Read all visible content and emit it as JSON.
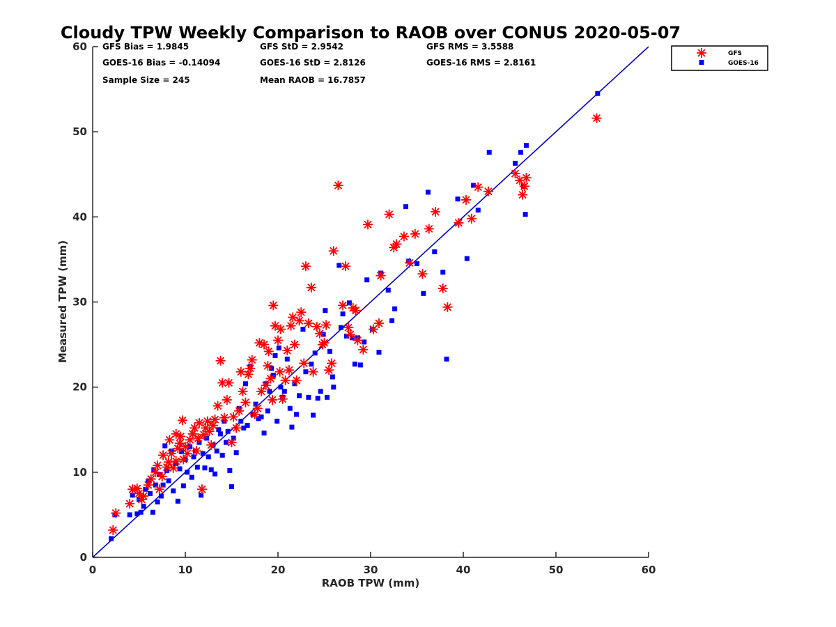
{
  "chart_data": {
    "type": "scatter",
    "title": "Cloudy TPW Weekly Comparison to RAOB over CONUS 2020-05-07",
    "xlabel": "RAOB TPW (mm)",
    "ylabel": "Measured TPW (mm)",
    "xlim": [
      0,
      60
    ],
    "ylim": [
      0,
      60
    ],
    "xticks": [
      "0",
      "10",
      "20",
      "30",
      "40",
      "50",
      "60"
    ],
    "yticks": [
      "0",
      "10",
      "20",
      "30",
      "40",
      "50",
      "60"
    ],
    "grid": false,
    "legend_position": "top-right",
    "reference_line": {
      "x": [
        0,
        60
      ],
      "y": [
        0,
        60
      ],
      "color": "#0000cc"
    },
    "stats": [
      "GFS Bias = 1.9845",
      "GFS StD = 2.9542",
      "GFS RMS = 3.5588",
      "GOES-16 Bias = -0.14094",
      "GOES-16 StD = 2.8126",
      "GOES-16 RMS = 2.8161",
      "Sample Size = 245",
      "Mean RAOB = 16.7857"
    ],
    "series": [
      {
        "name": "GFS",
        "marker": "asterisk",
        "color": "#ff0000",
        "points": [
          [
            2.2,
            3.2
          ],
          [
            2.5,
            5.2
          ],
          [
            4.0,
            6.3
          ],
          [
            4.3,
            8.0
          ],
          [
            4.8,
            8.1
          ],
          [
            5.0,
            7.5
          ],
          [
            5.3,
            6.8
          ],
          [
            5.5,
            7.2
          ],
          [
            6.0,
            8.5
          ],
          [
            6.3,
            9.2
          ],
          [
            6.8,
            10.0
          ],
          [
            7.0,
            10.8
          ],
          [
            7.2,
            8.0
          ],
          [
            7.5,
            9.5
          ],
          [
            7.6,
            12.0
          ],
          [
            8.0,
            10.6
          ],
          [
            8.2,
            11.2
          ],
          [
            8.3,
            13.8
          ],
          [
            8.5,
            12.2
          ],
          [
            8.7,
            10.5
          ],
          [
            9.0,
            11.3
          ],
          [
            9.0,
            14.5
          ],
          [
            9.2,
            12.8
          ],
          [
            9.4,
            13.4
          ],
          [
            9.5,
            14.2
          ],
          [
            9.7,
            16.1
          ],
          [
            9.8,
            11.5
          ],
          [
            10.0,
            13.0
          ],
          [
            10.2,
            12.2
          ],
          [
            10.5,
            13.8
          ],
          [
            10.8,
            14.5
          ],
          [
            11.0,
            15.2
          ],
          [
            11.2,
            12.5
          ],
          [
            11.4,
            14.0
          ],
          [
            11.5,
            15.8
          ],
          [
            11.8,
            8.0
          ],
          [
            12.0,
            14.4
          ],
          [
            12.2,
            15.2
          ],
          [
            12.4,
            16.0
          ],
          [
            12.6,
            14.8
          ],
          [
            12.8,
            13.2
          ],
          [
            13.0,
            15.5
          ],
          [
            13.2,
            16.2
          ],
          [
            13.5,
            17.8
          ],
          [
            13.8,
            23.1
          ],
          [
            14.0,
            20.5
          ],
          [
            14.2,
            16.4
          ],
          [
            14.5,
            18.5
          ],
          [
            14.7,
            20.5
          ],
          [
            15.0,
            13.5
          ],
          [
            15.2,
            16.5
          ],
          [
            15.5,
            15.2
          ],
          [
            15.8,
            17.2
          ],
          [
            16.0,
            21.8
          ],
          [
            16.2,
            19.5
          ],
          [
            16.5,
            18.2
          ],
          [
            16.8,
            21.5
          ],
          [
            17.0,
            22.2
          ],
          [
            17.2,
            23.2
          ],
          [
            17.5,
            16.8
          ],
          [
            17.8,
            17.5
          ],
          [
            18.0,
            25.2
          ],
          [
            18.2,
            19.5
          ],
          [
            18.5,
            25.0
          ],
          [
            18.7,
            20.2
          ],
          [
            18.9,
            22.5
          ],
          [
            19.0,
            24.2
          ],
          [
            19.2,
            21.0
          ],
          [
            19.4,
            18.5
          ],
          [
            19.5,
            29.6
          ],
          [
            19.7,
            27.2
          ],
          [
            20.0,
            25.5
          ],
          [
            20.2,
            21.8
          ],
          [
            20.3,
            26.8
          ],
          [
            20.5,
            18.6
          ],
          [
            20.8,
            20.8
          ],
          [
            21.0,
            24.3
          ],
          [
            21.2,
            22.0
          ],
          [
            21.4,
            27.2
          ],
          [
            21.6,
            28.2
          ],
          [
            21.8,
            25.0
          ],
          [
            22.0,
            20.8
          ],
          [
            22.3,
            27.8
          ],
          [
            22.5,
            28.8
          ],
          [
            22.8,
            22.8
          ],
          [
            23.0,
            34.2
          ],
          [
            23.3,
            27.5
          ],
          [
            23.6,
            31.7
          ],
          [
            23.8,
            21.8
          ],
          [
            24.2,
            27.1
          ],
          [
            24.5,
            26.3
          ],
          [
            24.8,
            25.0
          ],
          [
            25.0,
            25.2
          ],
          [
            25.2,
            27.3
          ],
          [
            25.5,
            22.0
          ],
          [
            25.8,
            22.8
          ],
          [
            26.0,
            36.0
          ],
          [
            26.5,
            43.7
          ],
          [
            27.0,
            29.6
          ],
          [
            27.3,
            34.2
          ],
          [
            27.6,
            27.0
          ],
          [
            27.8,
            26.2
          ],
          [
            28.1,
            29.3
          ],
          [
            28.4,
            29.0
          ],
          [
            28.6,
            25.5
          ],
          [
            29.2,
            24.4
          ],
          [
            29.7,
            39.1
          ],
          [
            30.3,
            26.8
          ],
          [
            30.9,
            27.5
          ],
          [
            31.1,
            33.1
          ],
          [
            32.0,
            40.3
          ],
          [
            32.5,
            36.4
          ],
          [
            32.8,
            36.8
          ],
          [
            33.6,
            37.7
          ],
          [
            34.2,
            34.6
          ],
          [
            34.8,
            38.0
          ],
          [
            35.6,
            33.3
          ],
          [
            36.3,
            38.6
          ],
          [
            37.0,
            40.6
          ],
          [
            37.8,
            31.6
          ],
          [
            38.3,
            29.4
          ],
          [
            39.5,
            39.3
          ],
          [
            40.3,
            42.0
          ],
          [
            40.9,
            39.8
          ],
          [
            41.6,
            43.5
          ],
          [
            42.7,
            43.0
          ],
          [
            45.6,
            45.1
          ],
          [
            46.1,
            44.3
          ],
          [
            46.4,
            42.6
          ],
          [
            46.6,
            43.6
          ],
          [
            46.8,
            44.6
          ],
          [
            54.4,
            51.6
          ]
        ]
      },
      {
        "name": "GOES-16",
        "marker": "square",
        "color": "#0000ff",
        "points": [
          [
            2.0,
            2.2
          ],
          [
            2.4,
            5.0
          ],
          [
            4.0,
            5.0
          ],
          [
            4.3,
            7.3
          ],
          [
            4.8,
            5.1
          ],
          [
            5.0,
            6.8
          ],
          [
            5.2,
            5.3
          ],
          [
            5.5,
            6.0
          ],
          [
            5.7,
            8.0
          ],
          [
            6.0,
            9.0
          ],
          [
            6.2,
            7.5
          ],
          [
            6.5,
            5.3
          ],
          [
            6.6,
            10.3
          ],
          [
            6.8,
            8.5
          ],
          [
            7.0,
            6.5
          ],
          [
            7.2,
            9.7
          ],
          [
            7.4,
            7.2
          ],
          [
            7.6,
            8.5
          ],
          [
            7.8,
            13.1
          ],
          [
            8.0,
            10.2
          ],
          [
            8.2,
            9.0
          ],
          [
            8.5,
            12.5
          ],
          [
            8.7,
            7.8
          ],
          [
            9.0,
            11.0
          ],
          [
            9.2,
            6.6
          ],
          [
            9.4,
            10.4
          ],
          [
            9.6,
            12.4
          ],
          [
            9.8,
            8.4
          ],
          [
            10.0,
            11.5
          ],
          [
            10.2,
            10.0
          ],
          [
            10.5,
            13.0
          ],
          [
            10.7,
            9.4
          ],
          [
            10.9,
            11.8
          ],
          [
            11.1,
            12.5
          ],
          [
            11.3,
            10.6
          ],
          [
            11.5,
            13.5
          ],
          [
            11.7,
            7.3
          ],
          [
            11.9,
            12.2
          ],
          [
            12.1,
            10.5
          ],
          [
            12.3,
            14.0
          ],
          [
            12.5,
            11.8
          ],
          [
            12.8,
            10.3
          ],
          [
            13.0,
            13.2
          ],
          [
            13.2,
            9.8
          ],
          [
            13.4,
            12.5
          ],
          [
            13.6,
            15.0
          ],
          [
            13.8,
            14.5
          ],
          [
            14.0,
            12.0
          ],
          [
            14.2,
            16.0
          ],
          [
            14.4,
            13.5
          ],
          [
            14.6,
            14.8
          ],
          [
            14.8,
            10.2
          ],
          [
            15.0,
            8.3
          ],
          [
            15.2,
            14.0
          ],
          [
            15.5,
            12.3
          ],
          [
            15.8,
            17.5
          ],
          [
            16.0,
            16.0
          ],
          [
            16.3,
            15.2
          ],
          [
            16.5,
            20.4
          ],
          [
            16.7,
            15.5
          ],
          [
            17.0,
            22.4
          ],
          [
            17.3,
            16.8
          ],
          [
            17.6,
            18.0
          ],
          [
            17.9,
            16.3
          ],
          [
            18.2,
            16.5
          ],
          [
            18.5,
            14.6
          ],
          [
            18.7,
            20.4
          ],
          [
            18.9,
            17.2
          ],
          [
            19.1,
            19.5
          ],
          [
            19.3,
            22.2
          ],
          [
            19.5,
            21.4
          ],
          [
            19.7,
            23.7
          ],
          [
            19.9,
            16.0
          ],
          [
            20.1,
            24.6
          ],
          [
            20.3,
            20.0
          ],
          [
            20.5,
            18.8
          ],
          [
            20.7,
            19.5
          ],
          [
            21.0,
            23.3
          ],
          [
            21.3,
            17.5
          ],
          [
            21.5,
            15.3
          ],
          [
            21.8,
            20.4
          ],
          [
            22.0,
            16.8
          ],
          [
            22.3,
            19.0
          ],
          [
            22.7,
            26.8
          ],
          [
            23.0,
            21.8
          ],
          [
            23.3,
            18.8
          ],
          [
            23.6,
            22.7
          ],
          [
            23.8,
            16.7
          ],
          [
            24.0,
            24.0
          ],
          [
            24.3,
            18.7
          ],
          [
            24.6,
            19.5
          ],
          [
            24.9,
            26.2
          ],
          [
            25.1,
            29.0
          ],
          [
            25.3,
            18.8
          ],
          [
            25.6,
            24.2
          ],
          [
            25.9,
            21.2
          ],
          [
            26.0,
            20.0
          ],
          [
            26.6,
            34.3
          ],
          [
            26.8,
            27.0
          ],
          [
            27.0,
            28.6
          ],
          [
            27.4,
            26.0
          ],
          [
            27.7,
            29.9
          ],
          [
            28.0,
            25.8
          ],
          [
            28.3,
            22.7
          ],
          [
            28.6,
            25.8
          ],
          [
            28.9,
            22.6
          ],
          [
            29.3,
            25.3
          ],
          [
            29.6,
            32.6
          ],
          [
            30.2,
            26.8
          ],
          [
            30.9,
            24.1
          ],
          [
            31.1,
            33.4
          ],
          [
            31.9,
            31.4
          ],
          [
            32.3,
            27.8
          ],
          [
            32.6,
            29.2
          ],
          [
            33.8,
            41.2
          ],
          [
            34.1,
            34.8
          ],
          [
            35.0,
            34.5
          ],
          [
            35.7,
            31.0
          ],
          [
            36.2,
            42.9
          ],
          [
            36.9,
            35.9
          ],
          [
            37.8,
            33.5
          ],
          [
            38.2,
            23.3
          ],
          [
            39.4,
            42.1
          ],
          [
            40.4,
            35.1
          ],
          [
            41.1,
            43.7
          ],
          [
            41.6,
            40.8
          ],
          [
            42.8,
            47.6
          ],
          [
            45.6,
            46.3
          ],
          [
            46.2,
            47.6
          ],
          [
            46.5,
            43.6
          ],
          [
            46.7,
            40.3
          ],
          [
            46.8,
            48.4
          ],
          [
            54.5,
            54.5
          ]
        ]
      }
    ]
  }
}
